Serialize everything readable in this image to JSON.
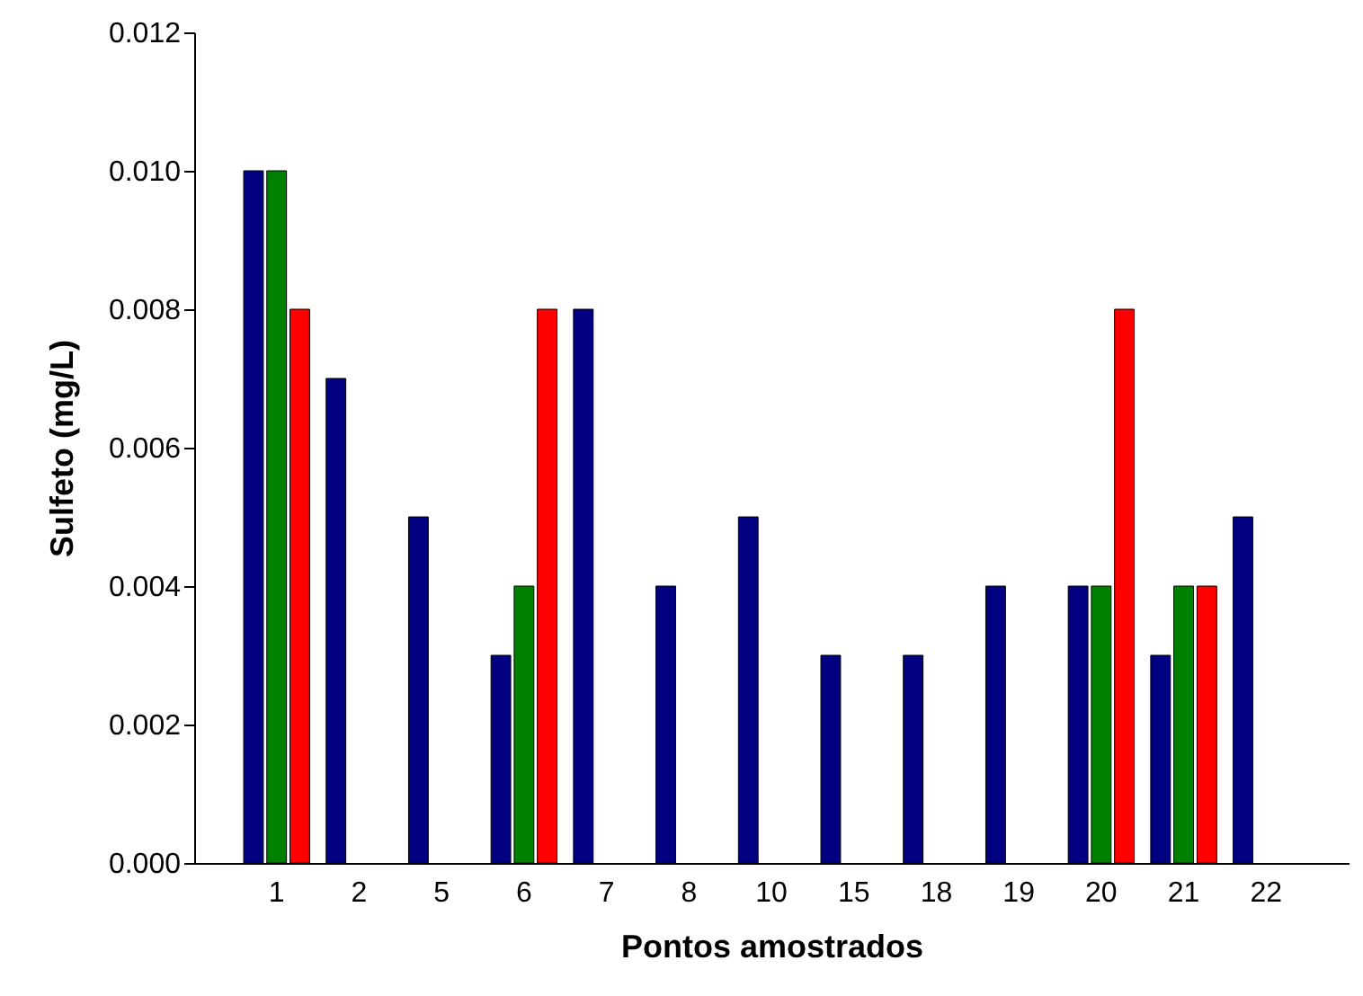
{
  "chart_data": {
    "type": "bar",
    "xlabel": "Pontos amostrados",
    "ylabel": "Sulfeto (mg/L)",
    "categories": [
      "1",
      "2",
      "5",
      "6",
      "7",
      "8",
      "10",
      "15",
      "18",
      "19",
      "20",
      "21",
      "22"
    ],
    "series": [
      {
        "color": "#000080",
        "values": [
          0.01,
          0.007,
          0.005,
          0.003,
          0.008,
          0.004,
          0.005,
          0.003,
          0.003,
          0.004,
          0.004,
          0.003,
          0.005
        ]
      },
      {
        "color": "#008000",
        "values": [
          0.01,
          null,
          null,
          0.004,
          null,
          null,
          null,
          null,
          null,
          null,
          0.004,
          0.004,
          null
        ]
      },
      {
        "color": "#ff0000",
        "values": [
          0.008,
          null,
          null,
          0.008,
          null,
          null,
          null,
          null,
          null,
          null,
          0.008,
          0.004,
          null
        ]
      }
    ],
    "ylim": [
      0,
      0.012
    ],
    "yticks": [
      {
        "value": 0,
        "label": "0.000"
      },
      {
        "value": 0.002,
        "label": "0.002"
      },
      {
        "value": 0.004,
        "label": "0.004"
      },
      {
        "value": 0.006,
        "label": "0.006"
      },
      {
        "value": 0.008,
        "label": "0.008"
      },
      {
        "value": 0.01,
        "label": "0.010"
      },
      {
        "value": 0.012,
        "label": "0.012"
      }
    ]
  }
}
